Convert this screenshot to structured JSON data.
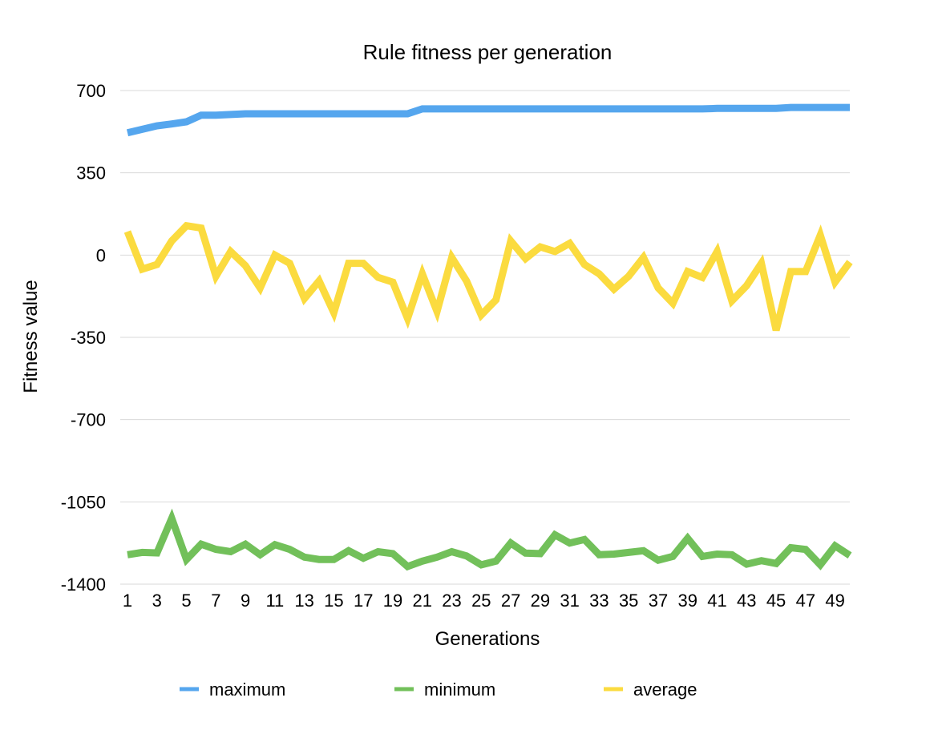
{
  "chart_data": {
    "type": "line",
    "title": "Rule fitness per generation",
    "xlabel": "Generations",
    "ylabel": "Fitness value",
    "ylim": [
      -1400,
      700
    ],
    "yticks": [
      700,
      350,
      0,
      -350,
      -700,
      -1050,
      -1400
    ],
    "x": [
      1,
      2,
      3,
      4,
      5,
      6,
      7,
      8,
      9,
      10,
      11,
      12,
      13,
      14,
      15,
      16,
      17,
      18,
      19,
      20,
      21,
      22,
      23,
      24,
      25,
      26,
      27,
      28,
      29,
      30,
      31,
      32,
      33,
      34,
      35,
      36,
      37,
      38,
      39,
      40,
      41,
      42,
      43,
      44,
      45,
      46,
      47,
      48,
      49,
      50
    ],
    "xtick_labels": [
      "1",
      "3",
      "5",
      "7",
      "9",
      "11",
      "13",
      "15",
      "17",
      "19",
      "21",
      "23",
      "25",
      "27",
      "29",
      "31",
      "33",
      "35",
      "37",
      "39",
      "41",
      "43",
      "45",
      "47",
      "49"
    ],
    "grid": true,
    "legend_position": "bottom",
    "series": [
      {
        "name": "maximum",
        "color": "#55a6ee",
        "values": [
          520,
          535,
          550,
          558,
          567,
          595,
          595,
          598,
          601,
          601,
          601,
          601,
          601,
          601,
          601,
          601,
          601,
          601,
          601,
          601,
          622,
          622,
          622,
          622,
          622,
          622,
          622,
          622,
          622,
          622,
          622,
          622,
          622,
          622,
          622,
          622,
          622,
          622,
          622,
          622,
          624,
          624,
          624,
          624,
          624,
          628,
          628,
          628,
          628,
          628
        ]
      },
      {
        "name": "minimum",
        "color": "#72c05a",
        "values": [
          -1275,
          -1265,
          -1267,
          -1120,
          -1295,
          -1230,
          -1252,
          -1262,
          -1230,
          -1275,
          -1232,
          -1252,
          -1285,
          -1295,
          -1295,
          -1258,
          -1290,
          -1262,
          -1270,
          -1325,
          -1302,
          -1285,
          -1262,
          -1280,
          -1318,
          -1302,
          -1225,
          -1268,
          -1270,
          -1190,
          -1225,
          -1210,
          -1275,
          -1272,
          -1265,
          -1258,
          -1298,
          -1282,
          -1205,
          -1282,
          -1272,
          -1275,
          -1315,
          -1300,
          -1312,
          -1245,
          -1252,
          -1318,
          -1237,
          -1278
        ]
      },
      {
        "name": "average",
        "color": "#fbdb3f",
        "values": [
          100,
          -60,
          -40,
          60,
          125,
          115,
          -90,
          15,
          -45,
          -140,
          0,
          -35,
          -185,
          -110,
          -245,
          -35,
          -35,
          -95,
          -115,
          -270,
          -80,
          -240,
          -10,
          -110,
          -255,
          -190,
          60,
          -15,
          35,
          15,
          50,
          -40,
          -80,
          -145,
          -90,
          -10,
          -140,
          -205,
          -70,
          -95,
          15,
          -195,
          -130,
          -35,
          -320,
          -70,
          -70,
          85,
          -115,
          -30
        ]
      }
    ]
  }
}
